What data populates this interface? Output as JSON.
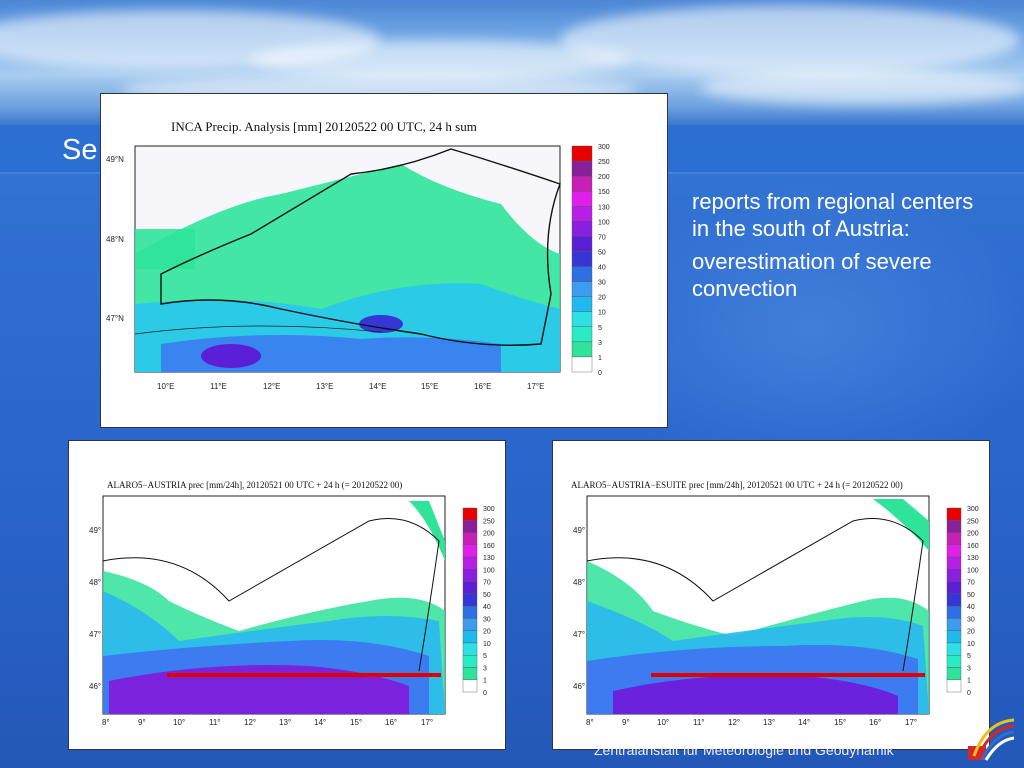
{
  "slide": {
    "title_partial": "Se",
    "bullets": [
      "reports from regional centers in the south of Austria:",
      "overestimation of severe convection"
    ],
    "footer": "Zentralanstalt für Meteorologie und Geodynamik"
  },
  "colors": {
    "background": "#2a66cc",
    "text": "#ffffff",
    "scale_colors": [
      "#ffffff",
      "#2fe39a",
      "#29ecc7",
      "#2de0e6",
      "#1fb8ef",
      "#3c9cf0",
      "#2f6fe6",
      "#3636d6",
      "#5a1fd6",
      "#8a1fe0",
      "#b71fe6",
      "#e01fea",
      "#c81fb4",
      "#8a1f9a",
      "#e80000"
    ],
    "barrier_line": "#e00000"
  },
  "maps": {
    "inca": {
      "title": "INCA Precip. Analysis [mm] 20120522 00 UTC, 24 h sum",
      "lat_labels": [
        "49°N",
        "48°N",
        "47°N"
      ],
      "lon_labels": [
        "10°E",
        "11°E",
        "12°E",
        "13°E",
        "14°E",
        "15°E",
        "16°E",
        "17°E"
      ],
      "legend_values": [
        "300",
        "250",
        "200",
        "150",
        "130",
        "100",
        "70",
        "50",
        "40",
        "30",
        "20",
        "10",
        "5",
        "3",
        "1",
        "0"
      ]
    },
    "alaro": {
      "title": "ALARO5−AUSTRIA prec [mm/24h], 20120521 00 UTC + 24 h (= 20120522 00)",
      "lat_labels": [
        "49°",
        "48°",
        "47°",
        "46°"
      ],
      "lon_labels": [
        "8°",
        "9°",
        "10°",
        "11°",
        "12°",
        "13°",
        "14°",
        "15°",
        "16°",
        "17°"
      ],
      "legend_values": [
        "300",
        "250",
        "200",
        "160",
        "130",
        "100",
        "70",
        "50",
        "40",
        "30",
        "20",
        "10",
        "5",
        "3",
        "1",
        "0"
      ]
    },
    "esuite": {
      "title": "ALARO5−AUSTRIA−ESUITE prec [mm/24h], 20120521 00 UTC + 24 h (= 20120522 00)",
      "lat_labels": [
        "49°",
        "48°",
        "47°",
        "46°"
      ],
      "lon_labels": [
        "8°",
        "9°",
        "10°",
        "11°",
        "12°",
        "13°",
        "14°",
        "15°",
        "16°",
        "17°"
      ],
      "legend_values": [
        "300",
        "250",
        "200",
        "160",
        "130",
        "100",
        "70",
        "50",
        "40",
        "30",
        "20",
        "10",
        "5",
        "3",
        "1",
        "0"
      ]
    }
  }
}
